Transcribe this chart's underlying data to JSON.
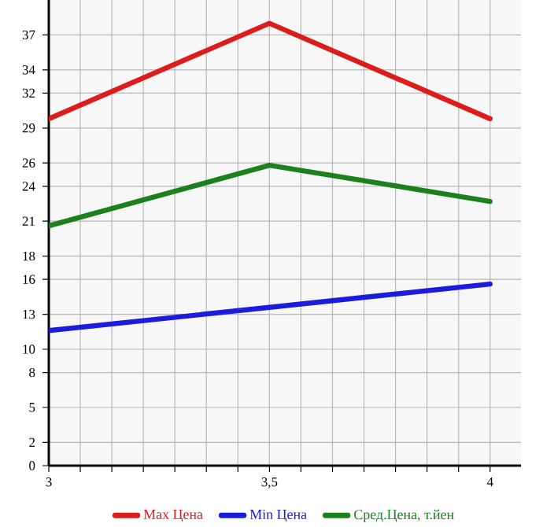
{
  "chart_data": {
    "type": "line",
    "x": [
      3,
      3.5,
      4
    ],
    "series": [
      {
        "name": "Max Цена",
        "color": "#dd1c1c",
        "values": [
          29.8,
          38.0,
          29.8
        ]
      },
      {
        "name": "Min Цена",
        "color": "#1c1cdd",
        "values": [
          11.6,
          13.6,
          15.6
        ]
      },
      {
        "name": "Сред.Цена, т.йен",
        "color": "#1c801c",
        "values": [
          20.6,
          25.8,
          22.7
        ]
      }
    ],
    "xlim": [
      3,
      4.07
    ],
    "xticks": [
      3,
      {
        "value": 3.0714,
        "label": null
      },
      {
        "value": 3.1429,
        "label": null
      },
      {
        "value": 3.2143,
        "label": null
      },
      {
        "value": 3.2857,
        "label": null
      },
      {
        "value": 3.3571,
        "label": null
      },
      {
        "value": 3.4286,
        "label": null
      },
      {
        "value": 3.5,
        "label": "3,5"
      },
      {
        "value": 3.5714,
        "label": null
      },
      {
        "value": 3.6429,
        "label": null
      },
      {
        "value": 3.7143,
        "label": null
      },
      {
        "value": 3.7857,
        "label": null
      },
      {
        "value": 3.8571,
        "label": null
      },
      {
        "value": 3.9286,
        "label": null
      },
      4
    ],
    "ylim": [
      0,
      40
    ],
    "yticks": [
      0,
      2,
      5,
      8,
      10,
      13,
      16,
      18,
      21,
      24,
      26,
      29,
      32,
      34,
      37
    ],
    "grid": true,
    "legend": "bottom",
    "marker": "none",
    "line_style": "solid"
  }
}
